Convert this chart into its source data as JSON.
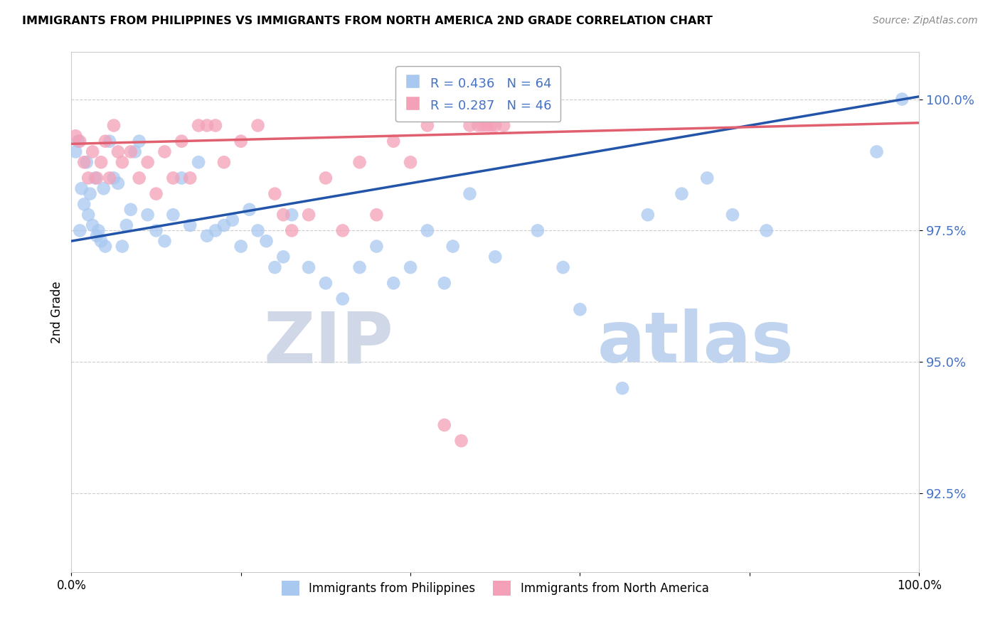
{
  "title": "IMMIGRANTS FROM PHILIPPINES VS IMMIGRANTS FROM NORTH AMERICA 2ND GRADE CORRELATION CHART",
  "source": "Source: ZipAtlas.com",
  "ylabel": "2nd Grade",
  "ytick_labels": [
    "92.5%",
    "95.0%",
    "97.5%",
    "100.0%"
  ],
  "ytick_values": [
    92.5,
    95.0,
    97.5,
    100.0
  ],
  "xmin": 0.0,
  "xmax": 100.0,
  "ymin": 91.0,
  "ymax": 100.9,
  "legend_blue_label": "Immigrants from Philippines",
  "legend_pink_label": "Immigrants from North America",
  "r_blue": 0.436,
  "n_blue": 64,
  "r_pink": 0.287,
  "n_pink": 46,
  "blue_color": "#A8C8F0",
  "pink_color": "#F4A0B8",
  "trendline_blue": "#2255AA",
  "trendline_pink": "#E06070",
  "watermark_zip": "ZIP",
  "watermark_atlas": "atlas",
  "watermark_color_zip": "#D0D8E8",
  "watermark_color_atlas": "#C0D4F0",
  "trendline_blue_x0": 0.0,
  "trendline_blue_y0": 97.3,
  "trendline_blue_x1": 100.0,
  "trendline_blue_y1": 100.05,
  "trendline_pink_x0": 0.0,
  "trendline_pink_y0": 99.15,
  "trendline_pink_x1": 100.0,
  "trendline_pink_y1": 99.55,
  "blue_scatter_x": [
    0.5,
    0.8,
    1.0,
    1.2,
    1.5,
    1.8,
    2.0,
    2.2,
    2.5,
    2.8,
    3.0,
    3.2,
    3.5,
    3.8,
    4.0,
    4.5,
    5.0,
    5.5,
    6.0,
    6.5,
    7.0,
    7.5,
    8.0,
    9.0,
    10.0,
    11.0,
    12.0,
    13.0,
    14.0,
    15.0,
    16.0,
    17.0,
    18.0,
    19.0,
    20.0,
    21.0,
    22.0,
    23.0,
    24.0,
    25.0,
    26.0,
    28.0,
    30.0,
    32.0,
    34.0,
    36.0,
    38.0,
    40.0,
    42.0,
    44.0,
    45.0,
    47.0,
    50.0,
    55.0,
    58.0,
    60.0,
    65.0,
    68.0,
    72.0,
    75.0,
    78.0,
    82.0,
    95.0,
    98.0
  ],
  "blue_scatter_y": [
    99.0,
    99.2,
    97.5,
    98.3,
    98.0,
    98.8,
    97.8,
    98.2,
    97.6,
    98.5,
    97.4,
    97.5,
    97.3,
    98.3,
    97.2,
    99.2,
    98.5,
    98.4,
    97.2,
    97.6,
    97.9,
    99.0,
    99.2,
    97.8,
    97.5,
    97.3,
    97.8,
    98.5,
    97.6,
    98.8,
    97.4,
    97.5,
    97.6,
    97.7,
    97.2,
    97.9,
    97.5,
    97.3,
    96.8,
    97.0,
    97.8,
    96.8,
    96.5,
    96.2,
    96.8,
    97.2,
    96.5,
    96.8,
    97.5,
    96.5,
    97.2,
    98.2,
    97.0,
    97.5,
    96.8,
    96.0,
    94.5,
    97.8,
    98.2,
    98.5,
    97.8,
    97.5,
    99.0,
    100.0
  ],
  "pink_scatter_x": [
    0.5,
    1.0,
    1.5,
    2.0,
    2.5,
    3.0,
    3.5,
    4.0,
    4.5,
    5.0,
    5.5,
    6.0,
    7.0,
    8.0,
    9.0,
    10.0,
    11.0,
    12.0,
    13.0,
    14.0,
    15.0,
    16.0,
    17.0,
    18.0,
    20.0,
    22.0,
    24.0,
    25.0,
    26.0,
    28.0,
    30.0,
    32.0,
    34.0,
    36.0,
    38.0,
    40.0,
    42.0,
    44.0,
    46.0,
    47.0,
    48.0,
    48.5,
    49.0,
    49.5,
    50.0,
    51.0
  ],
  "pink_scatter_y": [
    99.3,
    99.2,
    98.8,
    98.5,
    99.0,
    98.5,
    98.8,
    99.2,
    98.5,
    99.5,
    99.0,
    98.8,
    99.0,
    98.5,
    98.8,
    98.2,
    99.0,
    98.5,
    99.2,
    98.5,
    99.5,
    99.5,
    99.5,
    98.8,
    99.2,
    99.5,
    98.2,
    97.8,
    97.5,
    97.8,
    98.5,
    97.5,
    98.8,
    97.8,
    99.2,
    98.8,
    99.5,
    93.8,
    93.5,
    99.5,
    99.5,
    99.5,
    99.5,
    99.5,
    99.5,
    99.5
  ]
}
